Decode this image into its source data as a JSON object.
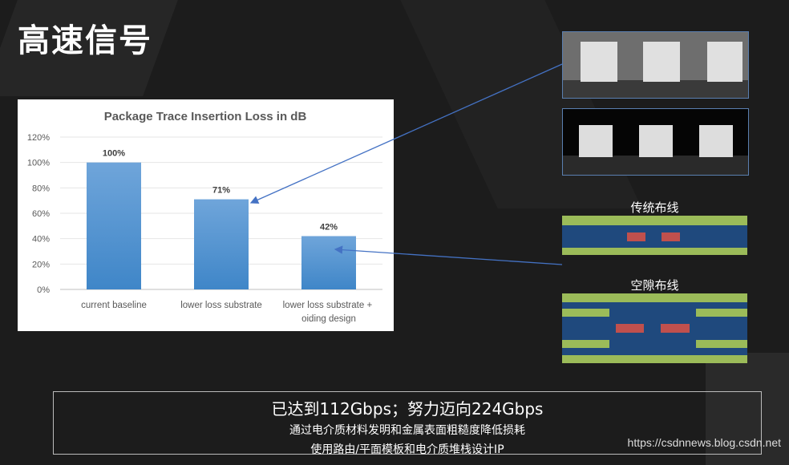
{
  "slide": {
    "title": "高速信号"
  },
  "chart_data": {
    "type": "bar",
    "title": "Package Trace Insertion Loss in dB",
    "categories": [
      "current baseline",
      "lower loss substrate",
      "lower loss substrate + voiding design"
    ],
    "values": [
      100,
      71,
      42
    ],
    "data_labels": [
      "100%",
      "71%",
      "42%"
    ],
    "yticks": [
      "0%",
      "20%",
      "40%",
      "60%",
      "80%",
      "100%",
      "120%"
    ],
    "ylim": [
      0,
      120
    ],
    "grid": true,
    "bar_color": "#5b9bd5"
  },
  "diagrams": {
    "traditional_label": "传统布线",
    "voiding_label": "空隙布线",
    "colors": {
      "ground": "#9bbb59",
      "dielectric": "#1f497d",
      "trace": "#c0504d"
    }
  },
  "summary": {
    "headline": "已达到112Gbps；努力迈向224Gbps",
    "line1": "通过电介质材料发明和金属表面粗糙度降低损耗",
    "line2": "使用路由/平面模板和电介质堆栈设计IP"
  },
  "watermark": "https://csdnnews.blog.csdn.net"
}
